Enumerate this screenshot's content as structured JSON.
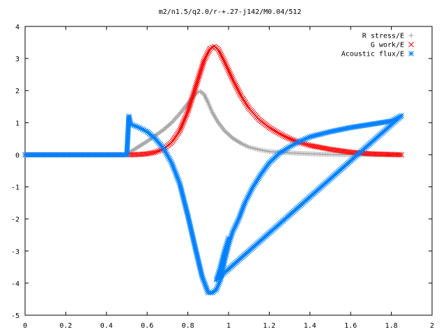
{
  "chart_data": {
    "type": "scatter",
    "title": "m2/n1.5/q2.0/r-+.27-j142/M0.04/512",
    "xlabel": "",
    "ylabel": "",
    "xlim": [
      0,
      2
    ],
    "ylim": [
      -5,
      4
    ],
    "x_ticks": [
      "0",
      "0.2",
      "0.4",
      "0.6",
      "0.8",
      "1",
      "1.2",
      "1.4",
      "1.6",
      "1.8",
      "2"
    ],
    "y_ticks": [
      "4",
      "3",
      "2",
      "1",
      "0",
      "-1",
      "-2",
      "-3",
      "-4",
      "-5"
    ],
    "grid": false,
    "legend_position": "top-right",
    "series": [
      {
        "name": "R stress/E",
        "marker": "plus",
        "color": "#a0a0a0",
        "points": [
          [
            0.0,
            0.0
          ],
          [
            0.1,
            0.0
          ],
          [
            0.2,
            0.0
          ],
          [
            0.3,
            0.0
          ],
          [
            0.4,
            0.0
          ],
          [
            0.5,
            0.0
          ],
          [
            0.52,
            0.1
          ],
          [
            0.56,
            0.26
          ],
          [
            0.6,
            0.42
          ],
          [
            0.64,
            0.6
          ],
          [
            0.68,
            0.78
          ],
          [
            0.72,
            1.0
          ],
          [
            0.76,
            1.28
          ],
          [
            0.8,
            1.6
          ],
          [
            0.84,
            1.92
          ],
          [
            0.86,
            1.98
          ],
          [
            0.88,
            1.88
          ],
          [
            0.9,
            1.62
          ],
          [
            0.92,
            1.32
          ],
          [
            0.95,
            1.0
          ],
          [
            0.98,
            0.75
          ],
          [
            1.02,
            0.52
          ],
          [
            1.06,
            0.36
          ],
          [
            1.1,
            0.24
          ],
          [
            1.15,
            0.16
          ],
          [
            1.2,
            0.1
          ],
          [
            1.3,
            0.06
          ],
          [
            1.4,
            0.03
          ],
          [
            1.5,
            0.01
          ],
          [
            1.6,
            0.0
          ],
          [
            1.7,
            0.0
          ],
          [
            1.8,
            0.0
          ],
          [
            1.85,
            0.0
          ]
        ]
      },
      {
        "name": "G work/E",
        "marker": "cross",
        "color": "#ff0000",
        "points": [
          [
            0.0,
            0.0
          ],
          [
            0.1,
            0.0
          ],
          [
            0.2,
            0.0
          ],
          [
            0.3,
            0.0
          ],
          [
            0.4,
            0.0
          ],
          [
            0.5,
            0.0
          ],
          [
            0.52,
            0.0
          ],
          [
            0.56,
            0.01
          ],
          [
            0.6,
            0.03
          ],
          [
            0.64,
            0.08
          ],
          [
            0.68,
            0.18
          ],
          [
            0.72,
            0.38
          ],
          [
            0.76,
            0.75
          ],
          [
            0.8,
            1.35
          ],
          [
            0.84,
            2.15
          ],
          [
            0.88,
            2.95
          ],
          [
            0.91,
            3.32
          ],
          [
            0.93,
            3.38
          ],
          [
            0.95,
            3.28
          ],
          [
            0.98,
            2.9
          ],
          [
            1.02,
            2.35
          ],
          [
            1.06,
            1.85
          ],
          [
            1.1,
            1.45
          ],
          [
            1.15,
            1.1
          ],
          [
            1.2,
            0.85
          ],
          [
            1.25,
            0.66
          ],
          [
            1.3,
            0.5
          ],
          [
            1.35,
            0.38
          ],
          [
            1.4,
            0.29
          ],
          [
            1.5,
            0.17
          ],
          [
            1.6,
            0.08
          ],
          [
            1.7,
            0.03
          ],
          [
            1.8,
            0.01
          ],
          [
            1.85,
            0.0
          ]
        ]
      },
      {
        "name": "Acoustic flux/E",
        "marker": "star",
        "color": "#0080ff",
        "points": [
          [
            0.0,
            0.0
          ],
          [
            0.1,
            0.0
          ],
          [
            0.2,
            0.0
          ],
          [
            0.3,
            0.0
          ],
          [
            0.4,
            0.0
          ],
          [
            0.5,
            0.0
          ],
          [
            0.51,
            1.2
          ],
          [
            0.52,
            0.95
          ],
          [
            0.56,
            0.85
          ],
          [
            0.6,
            0.72
          ],
          [
            0.64,
            0.5
          ],
          [
            0.68,
            0.2
          ],
          [
            0.72,
            -0.25
          ],
          [
            0.76,
            -0.9
          ],
          [
            0.8,
            -1.9
          ],
          [
            0.84,
            -3.0
          ],
          [
            0.87,
            -3.8
          ],
          [
            0.9,
            -4.3
          ],
          [
            0.92,
            -4.3
          ],
          [
            0.94,
            -4.2
          ],
          [
            0.96,
            -3.9
          ],
          [
            0.98,
            -3.3
          ],
          [
            1.0,
            -2.8
          ],
          [
            1.02,
            -2.4
          ],
          [
            1.05,
            -2.0
          ],
          [
            1.08,
            -1.5
          ],
          [
            1.12,
            -1.0
          ],
          [
            1.16,
            -0.6
          ],
          [
            1.2,
            -0.25
          ],
          [
            1.25,
            0.05
          ],
          [
            1.3,
            0.25
          ],
          [
            1.35,
            0.42
          ],
          [
            1.4,
            0.56
          ],
          [
            1.5,
            0.72
          ],
          [
            1.6,
            0.85
          ],
          [
            1.7,
            0.95
          ],
          [
            1.8,
            1.05
          ],
          [
            1.85,
            1.22
          ],
          [
            0.94,
            -3.9
          ],
          [
            0.96,
            -3.5
          ],
          [
            0.98,
            -3.0
          ],
          [
            1.0,
            -2.6
          ]
        ]
      }
    ]
  }
}
